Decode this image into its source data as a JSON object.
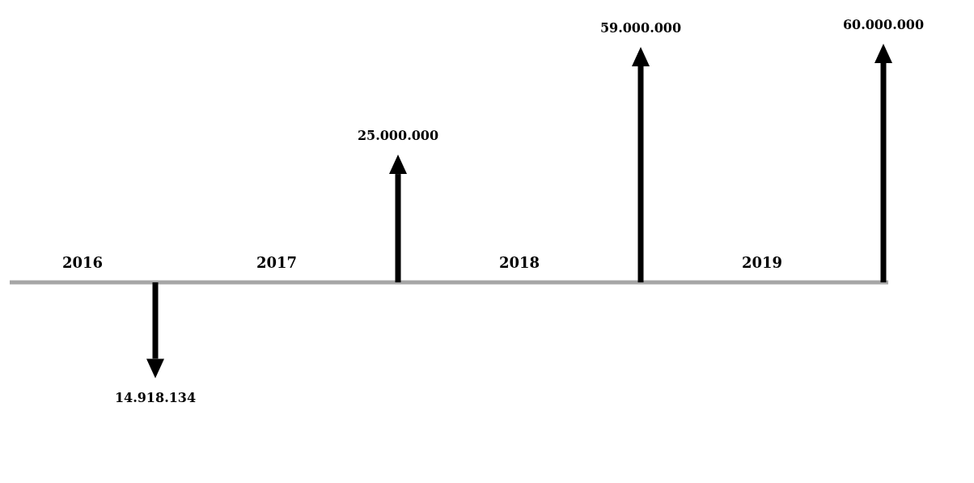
{
  "chart_data": {
    "type": "other",
    "categories": [
      "2016",
      "2017",
      "2018",
      "2019"
    ],
    "series": [
      {
        "color": "#000000",
        "values": [
          14918134,
          null,
          null,
          null
        ],
        "value_labels": [
          "14.918.134",
          null,
          null,
          null
        ]
      },
      {
        "color": "#000000",
        "values": [
          null,
          25000000,
          59000000,
          60000000
        ],
        "value_labels": [
          null,
          "25.000.000",
          "59.000.000",
          "60.000.000"
        ]
      }
    ]
  }
}
